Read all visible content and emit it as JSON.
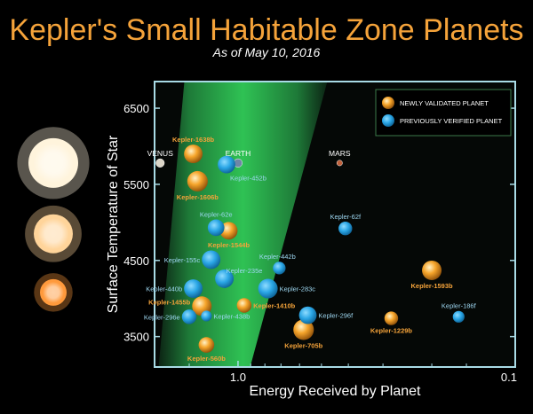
{
  "chart_data": {
    "type": "scatter",
    "title": "Kepler's Small Habitable Zone Planets",
    "subtitle": "As of May 10, 2016",
    "xlabel": "Energy Received by Planet",
    "ylabel": "Surface Temperature of Star",
    "x_scale": "log",
    "x_reversed": true,
    "xlim": [
      2.0,
      0.1
    ],
    "ylim": [
      3100,
      6850
    ],
    "x_ticks": [
      {
        "value": 1.0,
        "label": "1.0"
      },
      {
        "value": 0.1,
        "label": "0.1"
      }
    ],
    "y_ticks": [
      {
        "value": 3500,
        "label": "3500"
      },
      {
        "value": 4500,
        "label": "4500"
      },
      {
        "value": 5500,
        "label": "5500"
      },
      {
        "value": 6500,
        "label": "6500"
      }
    ],
    "legend": {
      "position": "top-right",
      "items": [
        {
          "label": "NEWLY VALIDATED PLANET",
          "color": "#f39a1e"
        },
        {
          "label": "PREVIOUSLY VERIFIED PLANET",
          "color": "#29a8e8"
        }
      ]
    },
    "series": [
      {
        "name": "NEWLY VALIDATED PLANET",
        "color": "#f39a1e",
        "points": [
          {
            "label": "Kepler-1638b",
            "x": 1.45,
            "y": 5900,
            "size": 1.9
          },
          {
            "label": "Kepler-1606b",
            "x": 1.4,
            "y": 5540,
            "size": 2.1
          },
          {
            "label": "Kepler-1544b",
            "x": 1.08,
            "y": 4890,
            "size": 1.8
          },
          {
            "label": "Kepler-1410b",
            "x": 0.95,
            "y": 3910,
            "size": 1.5
          },
          {
            "label": "Kepler-1455b",
            "x": 1.35,
            "y": 3900,
            "size": 2.0
          },
          {
            "label": "Kepler-705b",
            "x": 0.58,
            "y": 3590,
            "size": 2.1
          },
          {
            "label": "Kepler-1229b",
            "x": 0.28,
            "y": 3740,
            "size": 1.4
          },
          {
            "label": "Kepler-1593b",
            "x": 0.2,
            "y": 4370,
            "size": 2.0
          },
          {
            "label": "Kepler-560b",
            "x": 1.3,
            "y": 3390,
            "size": 1.6
          }
        ]
      },
      {
        "name": "PREVIOUSLY VERIFIED PLANET",
        "color": "#29a8e8",
        "points": [
          {
            "label": "Kepler-452b",
            "x": 1.1,
            "y": 5760,
            "size": 1.8
          },
          {
            "label": "Kepler-62e",
            "x": 1.2,
            "y": 4930,
            "size": 1.7
          },
          {
            "label": "Kepler-62f",
            "x": 0.41,
            "y": 4920,
            "size": 1.4
          },
          {
            "label": "Kepler-155c",
            "x": 1.25,
            "y": 4510,
            "size": 1.9
          },
          {
            "label": "Kepler-442b",
            "x": 0.71,
            "y": 4400,
            "size": 1.3
          },
          {
            "label": "Kepler-235e",
            "x": 1.12,
            "y": 4260,
            "size": 1.9
          },
          {
            "label": "Kepler-440b",
            "x": 1.45,
            "y": 4130,
            "size": 1.9
          },
          {
            "label": "Kepler-283c",
            "x": 0.78,
            "y": 4130,
            "size": 2.0
          },
          {
            "label": "Kepler-296e",
            "x": 1.5,
            "y": 3760,
            "size": 1.5
          },
          {
            "label": "Kepler-438b",
            "x": 1.3,
            "y": 3770,
            "size": 1.1
          },
          {
            "label": "Kepler-296f",
            "x": 0.56,
            "y": 3780,
            "size": 1.8
          },
          {
            "label": "Kepler-186f",
            "x": 0.16,
            "y": 3760,
            "size": 1.2
          }
        ]
      }
    ],
    "references": [
      {
        "label": "VENUS",
        "x": 1.91,
        "y": 5780,
        "color": "#dcd6c8"
      },
      {
        "label": "EARTH",
        "x": 1.0,
        "y": 5780,
        "color": "#6f86a6"
      },
      {
        "label": "MARS",
        "x": 0.43,
        "y": 5780,
        "color": "#c0603a"
      }
    ],
    "star_scale": [
      {
        "y": 5780,
        "color": "#fff4dc"
      },
      {
        "y": 4850,
        "color": "#ffd49a"
      },
      {
        "y": 4080,
        "color": "#ff9a3c"
      }
    ]
  }
}
